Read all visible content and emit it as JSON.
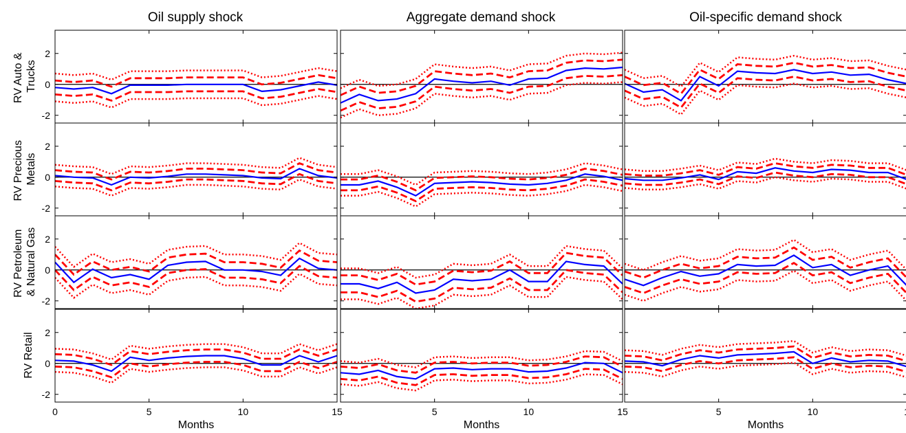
{
  "columns": [
    "Oil supply shock",
    "Aggregate demand shock",
    "Oil-specific demand shock"
  ],
  "rows": [
    [
      "RV Auto &",
      "Trucks"
    ],
    [
      "RV Precious",
      "Metals"
    ],
    [
      "RV Petroleum",
      "& Natural Gas"
    ],
    [
      "RV Retail"
    ]
  ],
  "xlabel": "Months",
  "x_ticks": [
    [
      "0",
      "5",
      "10",
      "15"
    ],
    [
      "5",
      "10",
      "15"
    ],
    [
      "5",
      "10",
      "1"
    ]
  ],
  "y_ticks": [
    "2",
    "0",
    "-2"
  ],
  "colors": {
    "estimate": "#0000ff",
    "band": "#ff0000",
    "zero": "#000000"
  },
  "chart_data": {
    "type": "line",
    "x": [
      0,
      1,
      2,
      3,
      4,
      5,
      6,
      7,
      8,
      9,
      10,
      11,
      12,
      13,
      14,
      15
    ],
    "xlim": [
      0,
      15
    ],
    "ylim": [
      -2.5,
      3.5
    ],
    "grid": false,
    "series_styles": {
      "estimate": "solid blue",
      "band_inner": "dashed red",
      "band_outer": "dotted red"
    },
    "panels": [
      {
        "row": 0,
        "col": 0,
        "values": [
          -0.2,
          -0.3,
          -0.2,
          -0.6,
          -0.05,
          -0.05,
          -0.05,
          0.0,
          0.0,
          0.0,
          0.0,
          -0.45,
          -0.35,
          -0.1,
          0.15,
          -0.05
        ],
        "band_inner": 0.45,
        "band_outer": 0.9
      },
      {
        "row": 0,
        "col": 1,
        "values": [
          -1.2,
          -0.65,
          -1.05,
          -0.95,
          -0.6,
          0.35,
          0.2,
          0.1,
          0.2,
          -0.05,
          0.35,
          0.4,
          0.9,
          1.05,
          1.0,
          1.1
        ],
        "band_inner": 0.5,
        "band_outer": 0.95
      },
      {
        "row": 0,
        "col": 2,
        "values": [
          0.05,
          -0.5,
          -0.35,
          -1.05,
          0.5,
          -0.1,
          0.85,
          0.75,
          0.7,
          0.95,
          0.7,
          0.8,
          0.6,
          0.65,
          0.3,
          0.05
        ],
        "band_inner": 0.45,
        "band_outer": 0.9
      },
      {
        "row": 1,
        "col": 0,
        "values": [
          0.1,
          0.0,
          -0.05,
          -0.5,
          0.0,
          -0.05,
          0.05,
          0.2,
          0.2,
          0.15,
          0.1,
          -0.05,
          -0.1,
          0.55,
          0.1,
          -0.05
        ],
        "band_inner": 0.35,
        "band_outer": 0.7
      },
      {
        "row": 1,
        "col": 1,
        "values": [
          -0.5,
          -0.5,
          -0.25,
          -0.65,
          -1.2,
          -0.4,
          -0.35,
          -0.3,
          -0.35,
          -0.45,
          -0.5,
          -0.4,
          -0.2,
          0.2,
          0.05,
          -0.2
        ],
        "band_inner": 0.35,
        "band_outer": 0.7
      },
      {
        "row": 1,
        "col": 2,
        "values": [
          -0.1,
          -0.2,
          -0.2,
          -0.05,
          0.15,
          -0.15,
          0.35,
          0.25,
          0.6,
          0.4,
          0.3,
          0.5,
          0.45,
          0.3,
          0.3,
          -0.15
        ],
        "band_inner": 0.3,
        "band_outer": 0.6
      },
      {
        "row": 2,
        "col": 0,
        "values": [
          0.5,
          -0.8,
          0.05,
          -0.5,
          -0.3,
          -0.6,
          0.3,
          0.5,
          0.55,
          0.0,
          0.0,
          -0.1,
          -0.35,
          0.75,
          0.1,
          0.0
        ],
        "band_inner": 0.5,
        "band_outer": 1.0
      },
      {
        "row": 2,
        "col": 1,
        "values": [
          -0.9,
          -0.9,
          -1.2,
          -0.8,
          -1.5,
          -1.3,
          -0.6,
          -0.7,
          -0.6,
          0.0,
          -0.75,
          -0.75,
          0.55,
          0.35,
          0.25,
          -0.9
        ],
        "band_inner": 0.55,
        "band_outer": 1.0
      },
      {
        "row": 2,
        "col": 2,
        "values": [
          -0.6,
          -1.0,
          -0.5,
          -0.1,
          -0.4,
          -0.25,
          0.35,
          0.25,
          0.3,
          0.95,
          0.15,
          0.35,
          -0.35,
          0.0,
          0.25,
          -1.0
        ],
        "band_inner": 0.5,
        "band_outer": 1.0
      },
      {
        "row": 3,
        "col": 0,
        "values": [
          0.2,
          0.15,
          -0.1,
          -0.5,
          0.4,
          0.2,
          0.35,
          0.45,
          0.5,
          0.5,
          0.3,
          -0.1,
          -0.1,
          0.5,
          0.1,
          0.5
        ],
        "band_inner": 0.4,
        "band_outer": 0.75
      },
      {
        "row": 3,
        "col": 1,
        "values": [
          -0.6,
          -0.7,
          -0.45,
          -0.85,
          -1.0,
          -0.35,
          -0.3,
          -0.4,
          -0.35,
          -0.35,
          -0.55,
          -0.5,
          -0.3,
          0.05,
          0.0,
          -0.6
        ],
        "band_inner": 0.4,
        "band_outer": 0.75
      },
      {
        "row": 3,
        "col": 2,
        "values": [
          0.15,
          0.1,
          -0.15,
          0.25,
          0.5,
          0.35,
          0.55,
          0.6,
          0.65,
          0.75,
          0.0,
          0.35,
          0.1,
          0.2,
          0.15,
          -0.2
        ],
        "band_inner": 0.35,
        "band_outer": 0.7
      }
    ]
  }
}
